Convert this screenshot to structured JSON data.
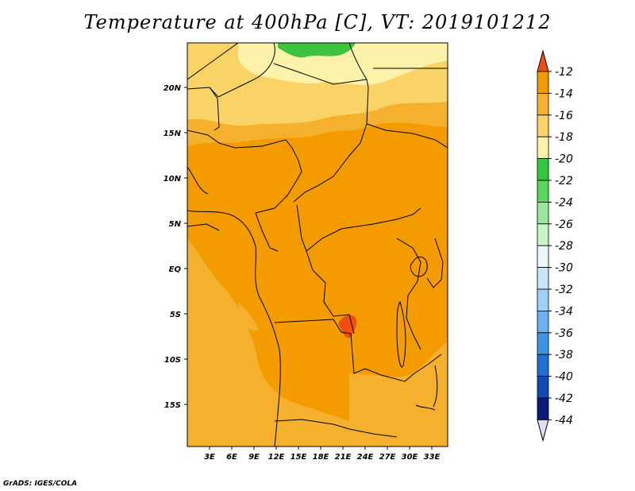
{
  "title": "Temperature at 400hPa [C], VT: 2019101212",
  "credit": "GrADS: IGES/COLA",
  "map": {
    "lat_labels": [
      "20N",
      "15N",
      "10N",
      "5N",
      "EQ",
      "5S",
      "10S",
      "15S"
    ],
    "lon_labels": [
      "3E",
      "6E",
      "9E",
      "12E",
      "15E",
      "18E",
      "21E",
      "24E",
      "27E",
      "30E",
      "33E"
    ]
  },
  "colorbar": {
    "labels": [
      "-12",
      "-14",
      "-16",
      "-18",
      "-20",
      "-22",
      "-24",
      "-26",
      "-28",
      "-30",
      "-32",
      "-34",
      "-36",
      "-38",
      "-40",
      "-42",
      "-44"
    ],
    "colors": [
      "#f04d10",
      "#f49b00",
      "#f5b12e",
      "#fad367",
      "#fdf2a9",
      "#34c73c",
      "#5ad65c",
      "#9ae69a",
      "#c8f5c8",
      "#eef8fb",
      "#c9e6f8",
      "#9fd0f5",
      "#6bb2ee",
      "#3b94e6",
      "#1f6fd6",
      "#1448b4",
      "#0c1a7a"
    ],
    "top_color": "#f04d10",
    "bottom_color": "#dcdcf5"
  }
}
